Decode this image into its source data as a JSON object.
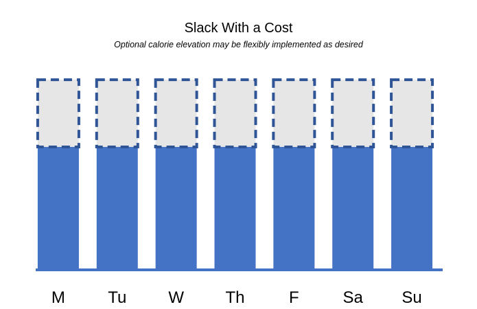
{
  "chart_data": {
    "type": "bar",
    "title": "Slack With a Cost",
    "subtitle": "Optional calorie elevation may be flexibly implemented as desired",
    "categories": [
      "M",
      "Tu",
      "W",
      "Th",
      "F",
      "Sa",
      "Su"
    ],
    "series": [
      {
        "values": [
          1,
          1,
          1,
          1,
          1,
          1,
          1
        ],
        "style": "solid"
      },
      {
        "values": [
          0.55,
          0.55,
          0.55,
          0.55,
          0.55,
          0.55,
          0.55
        ],
        "style": "dashed-outline"
      }
    ],
    "stacked": true,
    "ylim": [
      0,
      1.55
    ],
    "grid": false,
    "colors": {
      "base_fill": "#4472c4",
      "optional_fill": "#e7e6e6",
      "optional_border": "#2f5597",
      "axis_line": "#4472c4"
    }
  }
}
